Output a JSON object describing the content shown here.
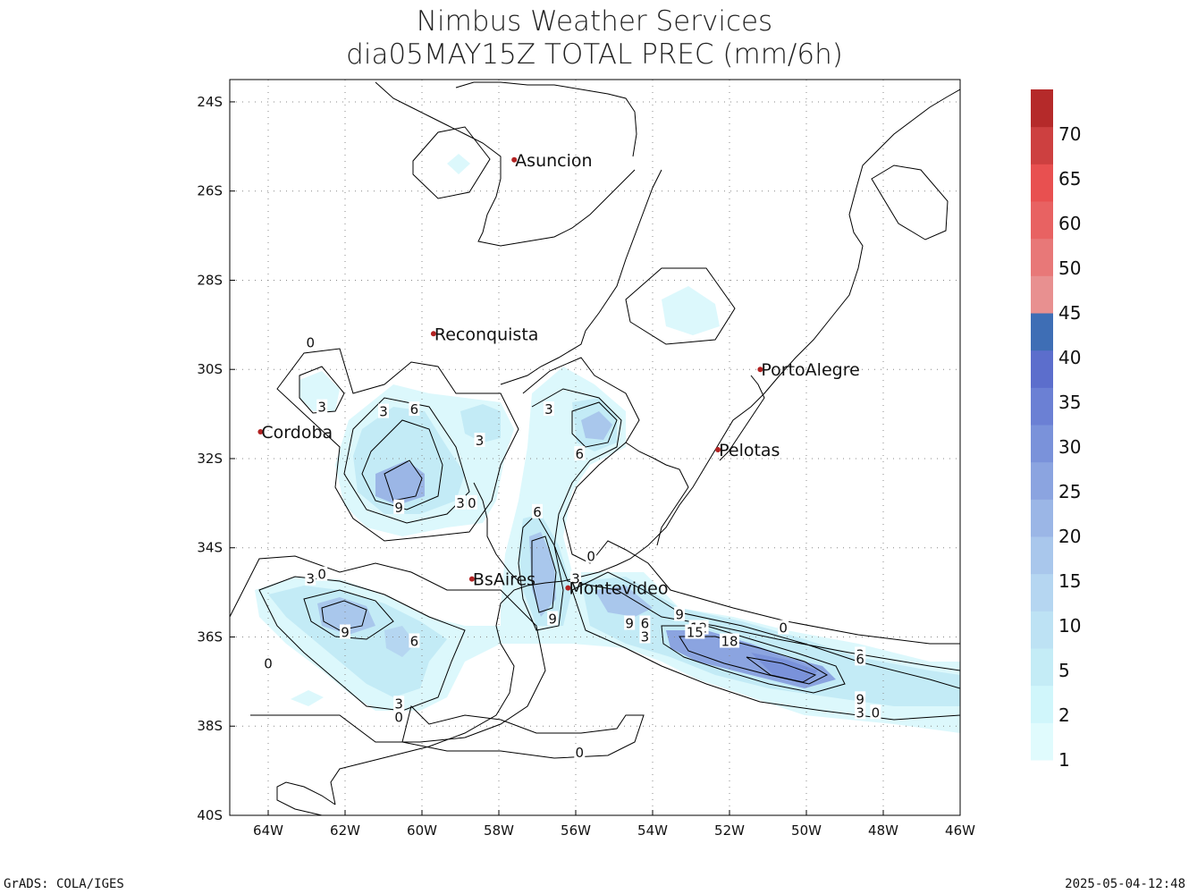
{
  "title": {
    "line1": "Nimbus Weather Services",
    "line2": "dia05MAY15Z TOTAL PREC (mm/6h)"
  },
  "map": {
    "lon_range": [
      -65,
      -46
    ],
    "lat_range": [
      -40,
      -23.5
    ],
    "x_ticks": [
      "64W",
      "62W",
      "60W",
      "58W",
      "56W",
      "54W",
      "52W",
      "50W",
      "48W",
      "46W"
    ],
    "x_tick_values": [
      -64,
      -62,
      -60,
      -58,
      -56,
      -54,
      -52,
      -50,
      -48,
      -46
    ],
    "y_ticks": [
      "24S",
      "26S",
      "28S",
      "30S",
      "32S",
      "34S",
      "36S",
      "38S",
      "40S"
    ],
    "y_tick_values": [
      -24,
      -26,
      -28,
      -30,
      -32,
      -34,
      -36,
      -38,
      -40
    ],
    "grid": "dotted",
    "coastline_color": "#000000",
    "city_marker_color": "#b22222",
    "cities": [
      {
        "name": "Asuncion",
        "lon": -57.6,
        "lat": -25.3
      },
      {
        "name": "Reconquista",
        "lon": -59.7,
        "lat": -29.2
      },
      {
        "name": "PortoAlegre",
        "lon": -51.2,
        "lat": -30.0
      },
      {
        "name": "Cordoba",
        "lon": -64.2,
        "lat": -31.4
      },
      {
        "name": "Pelotas",
        "lon": -52.3,
        "lat": -31.8
      },
      {
        "name": "BsAires",
        "lon": -58.7,
        "lat": -34.7
      },
      {
        "name": "Montevideo",
        "lon": -56.2,
        "lat": -34.9
      }
    ],
    "contour_labels": [
      {
        "text": "0",
        "lon": -62.9,
        "lat": -29.4
      },
      {
        "text": "3",
        "lon": -62.6,
        "lat": -30.85
      },
      {
        "text": "3",
        "lon": -61.0,
        "lat": -30.95
      },
      {
        "text": "6",
        "lon": -60.2,
        "lat": -30.9
      },
      {
        "text": "3",
        "lon": -58.5,
        "lat": -31.6
      },
      {
        "text": "9",
        "lon": -60.6,
        "lat": -33.1
      },
      {
        "text": "3",
        "lon": -59.0,
        "lat": -33.0
      },
      {
        "text": "0",
        "lon": -58.7,
        "lat": -33.0
      },
      {
        "text": "3",
        "lon": -56.7,
        "lat": -30.9
      },
      {
        "text": "6",
        "lon": -55.9,
        "lat": -31.9
      },
      {
        "text": "6",
        "lon": -57.0,
        "lat": -33.2
      },
      {
        "text": "0",
        "lon": -55.6,
        "lat": -34.2
      },
      {
        "text": "3",
        "lon": -56.0,
        "lat": -34.7
      },
      {
        "text": "9",
        "lon": -56.6,
        "lat": -35.6
      },
      {
        "text": "9",
        "lon": -54.6,
        "lat": -35.7
      },
      {
        "text": "6",
        "lon": -54.2,
        "lat": -35.7
      },
      {
        "text": "3",
        "lon": -54.2,
        "lat": -36.0
      },
      {
        "text": "9",
        "lon": -53.3,
        "lat": -35.5
      },
      {
        "text": "12",
        "lon": -52.8,
        "lat": -35.8
      },
      {
        "text": "15",
        "lon": -52.9,
        "lat": -35.9
      },
      {
        "text": "18",
        "lon": -52.0,
        "lat": -36.1
      },
      {
        "text": "0",
        "lon": -50.6,
        "lat": -35.8
      },
      {
        "text": "3",
        "lon": -62.9,
        "lat": -34.7
      },
      {
        "text": "0",
        "lon": -62.6,
        "lat": -34.6
      },
      {
        "text": "9",
        "lon": -62.0,
        "lat": -35.9
      },
      {
        "text": "6",
        "lon": -60.2,
        "lat": -36.1
      },
      {
        "text": "0",
        "lon": -64.0,
        "lat": -36.6
      },
      {
        "text": "3",
        "lon": -60.6,
        "lat": -37.5
      },
      {
        "text": "0",
        "lon": -60.6,
        "lat": -37.8
      },
      {
        "text": "0",
        "lon": -55.9,
        "lat": -38.6
      },
      {
        "text": "3",
        "lon": -48.6,
        "lat": -36.4
      },
      {
        "text": "6",
        "lon": -48.6,
        "lat": -36.5
      },
      {
        "text": "9",
        "lon": -48.6,
        "lat": -37.4
      },
      {
        "text": "3",
        "lon": -48.6,
        "lat": -37.7
      },
      {
        "text": "0",
        "lon": -48.2,
        "lat": -37.7
      }
    ]
  },
  "colorbar": {
    "levels": [
      "1",
      "2",
      "5",
      "10",
      "15",
      "20",
      "25",
      "30",
      "35",
      "40",
      "45",
      "50",
      "60",
      "65",
      "70"
    ],
    "colors": [
      "#e0fbfd",
      "#d0f6fb",
      "#c4ecf6",
      "#bde2f4",
      "#b5d6f1",
      "#a9c7ec",
      "#9bb6e6",
      "#8ba4e0",
      "#7a92da",
      "#6b80d4",
      "#5c6ecc",
      "#3e6eb5",
      "#e89090",
      "#e87878",
      "#e86262",
      "#e85050",
      "#cd4040",
      "#b52a2a"
    ]
  },
  "footer": {
    "left": "GrADS: COLA/IGES",
    "right": "2025-05-04-12:48"
  }
}
